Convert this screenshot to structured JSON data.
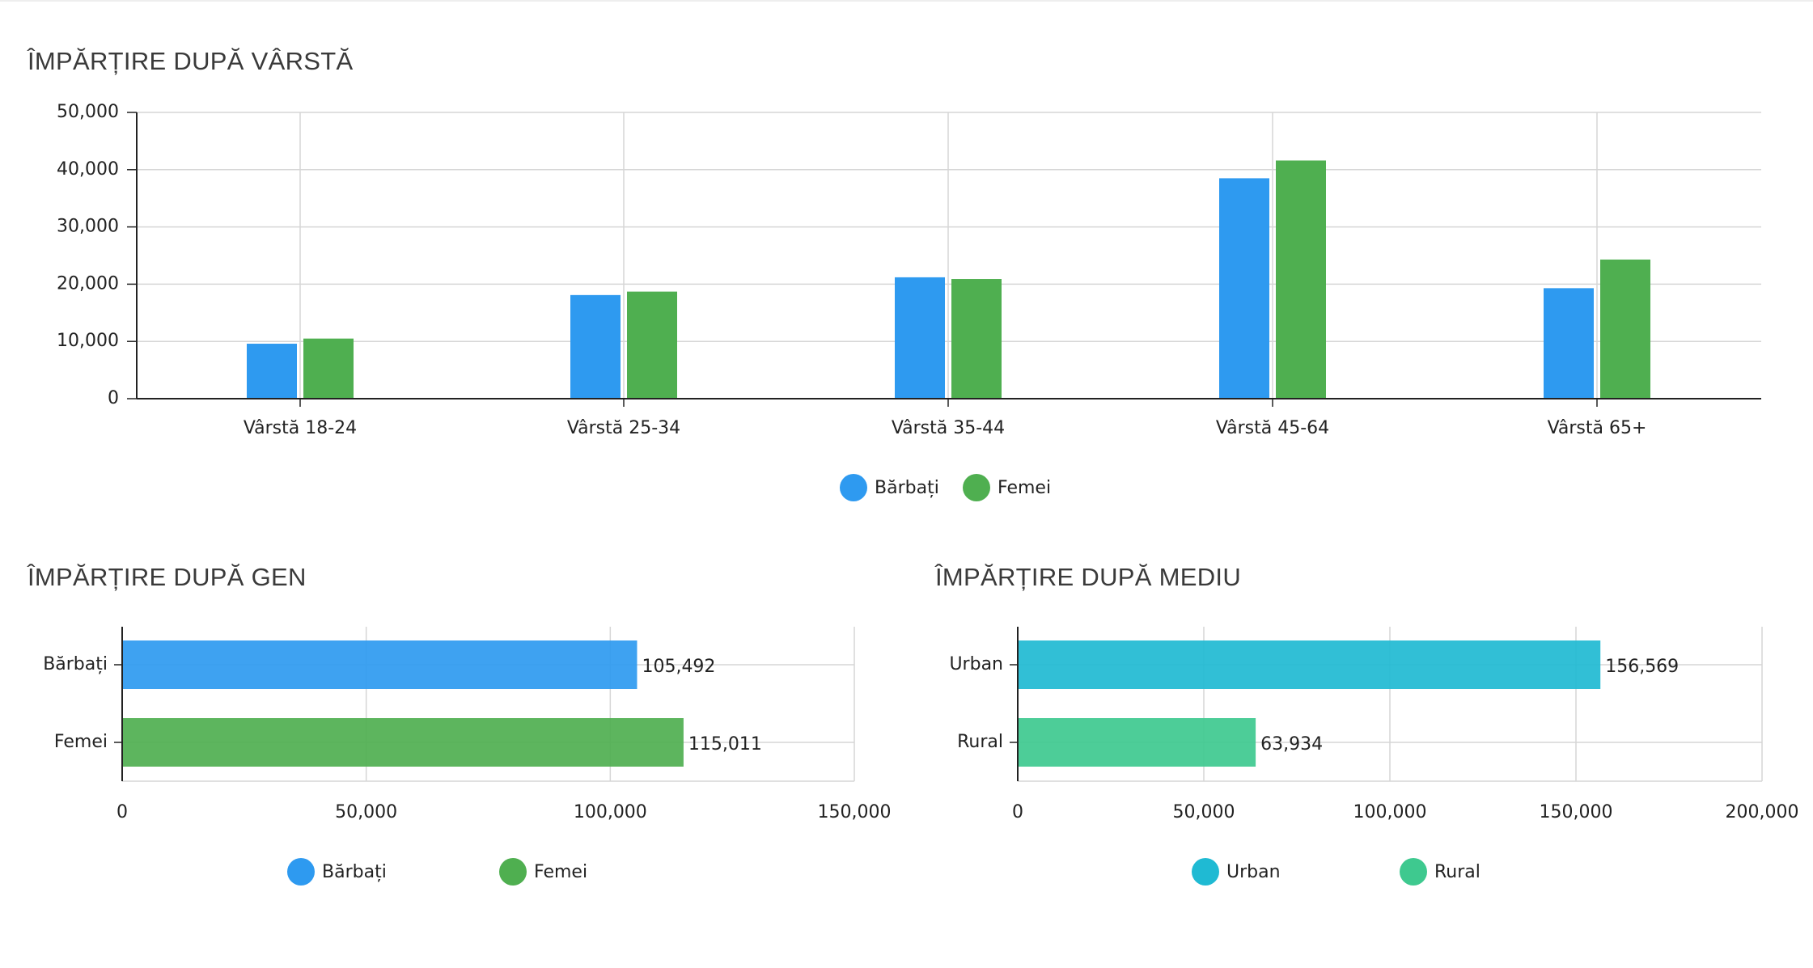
{
  "chart_data": [
    {
      "type": "bar",
      "title": "ÎMPĂRȚIRE DUPĂ VÂRSTĂ",
      "categories": [
        "Vârstă 18-24",
        "Vârstă 25-34",
        "Vârstă 35-44",
        "Vârstă 45-64",
        "Vârstă 65+"
      ],
      "series": [
        {
          "name": "Bărbați",
          "color": "#2e9af0",
          "values": [
            9600,
            18100,
            21200,
            38500,
            19300
          ]
        },
        {
          "name": "Femei",
          "color": "#4faf50",
          "values": [
            10500,
            18700,
            20900,
            41600,
            24300
          ]
        }
      ],
      "ylim": [
        0,
        50000
      ],
      "yticks": [
        "0",
        "10,000",
        "20,000",
        "30,000",
        "40,000",
        "50,000"
      ],
      "grid": true,
      "legend": "bottom-center"
    },
    {
      "type": "bar",
      "orientation": "horizontal",
      "title": "ÎMPĂRȚIRE DUPĂ GEN",
      "categories": [
        "Bărbați",
        "Femei"
      ],
      "values": [
        105492,
        115011
      ],
      "data_labels": [
        "105,492",
        "115,011"
      ],
      "colors": [
        "#2e9af0",
        "#4faf50"
      ],
      "xlim": [
        0,
        150000
      ],
      "xticks": [
        "0",
        "50,000",
        "100,000",
        "150,000"
      ],
      "legend_items": [
        {
          "name": "Bărbați",
          "color": "#2e9af0"
        },
        {
          "name": "Femei",
          "color": "#4faf50"
        }
      ],
      "grid": true,
      "legend": "bottom-center"
    },
    {
      "type": "bar",
      "orientation": "horizontal",
      "title": "ÎMPĂRȚIRE DUPĂ MEDIU",
      "categories": [
        "Urban",
        "Rural"
      ],
      "values": [
        156569,
        63934
      ],
      "data_labels": [
        "156,569",
        "63,934"
      ],
      "colors": [
        "#1fbad3",
        "#3ec98f"
      ],
      "xlim": [
        0,
        200000
      ],
      "xticks": [
        "0",
        "50,000",
        "100,000",
        "150,000",
        "200,000"
      ],
      "legend_items": [
        {
          "name": "Urban",
          "color": "#1fbad3"
        },
        {
          "name": "Rural",
          "color": "#3ec98f"
        }
      ],
      "grid": true,
      "legend": "bottom-center"
    }
  ]
}
